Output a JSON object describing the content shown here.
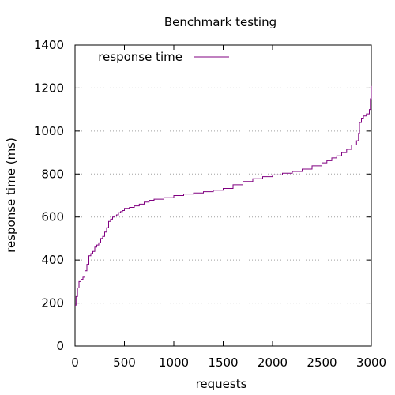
{
  "chart_data": {
    "type": "line",
    "title": "Benchmark testing",
    "xlabel": "requests",
    "ylabel": "response time (ms)",
    "xlim": [
      0,
      3000
    ],
    "ylim": [
      0,
      1400
    ],
    "x_ticks": [
      0,
      500,
      1000,
      1500,
      2000,
      2500,
      3000
    ],
    "y_ticks": [
      0,
      200,
      400,
      600,
      800,
      1000,
      1200,
      1400
    ],
    "grid": "horizontal dotted",
    "legend_position": "top-left",
    "series": [
      {
        "name": "response time",
        "color": "#800080",
        "step": true,
        "points": [
          [
            0,
            190
          ],
          [
            10,
            230
          ],
          [
            25,
            270
          ],
          [
            40,
            300
          ],
          [
            60,
            310
          ],
          [
            80,
            320
          ],
          [
            100,
            350
          ],
          [
            120,
            380
          ],
          [
            140,
            420
          ],
          [
            160,
            430
          ],
          [
            180,
            440
          ],
          [
            200,
            460
          ],
          [
            220,
            470
          ],
          [
            240,
            480
          ],
          [
            260,
            500
          ],
          [
            280,
            510
          ],
          [
            300,
            530
          ],
          [
            320,
            550
          ],
          [
            340,
            580
          ],
          [
            360,
            590
          ],
          [
            380,
            600
          ],
          [
            400,
            605
          ],
          [
            420,
            610
          ],
          [
            440,
            620
          ],
          [
            460,
            625
          ],
          [
            480,
            630
          ],
          [
            500,
            640
          ],
          [
            550,
            645
          ],
          [
            600,
            652
          ],
          [
            650,
            660
          ],
          [
            700,
            670
          ],
          [
            750,
            678
          ],
          [
            800,
            683
          ],
          [
            900,
            690
          ],
          [
            1000,
            700
          ],
          [
            1100,
            707
          ],
          [
            1200,
            712
          ],
          [
            1300,
            718
          ],
          [
            1400,
            725
          ],
          [
            1500,
            733
          ],
          [
            1600,
            750
          ],
          [
            1700,
            765
          ],
          [
            1800,
            778
          ],
          [
            1900,
            788
          ],
          [
            2000,
            796
          ],
          [
            2100,
            804
          ],
          [
            2200,
            812
          ],
          [
            2300,
            823
          ],
          [
            2400,
            838
          ],
          [
            2500,
            852
          ],
          [
            2550,
            862
          ],
          [
            2600,
            875
          ],
          [
            2650,
            885
          ],
          [
            2700,
            900
          ],
          [
            2750,
            915
          ],
          [
            2800,
            935
          ],
          [
            2850,
            955
          ],
          [
            2870,
            990
          ],
          [
            2880,
            1040
          ],
          [
            2900,
            1060
          ],
          [
            2920,
            1070
          ],
          [
            2950,
            1080
          ],
          [
            2980,
            1100
          ],
          [
            2990,
            1150
          ],
          [
            3000,
            1210
          ]
        ]
      }
    ]
  }
}
